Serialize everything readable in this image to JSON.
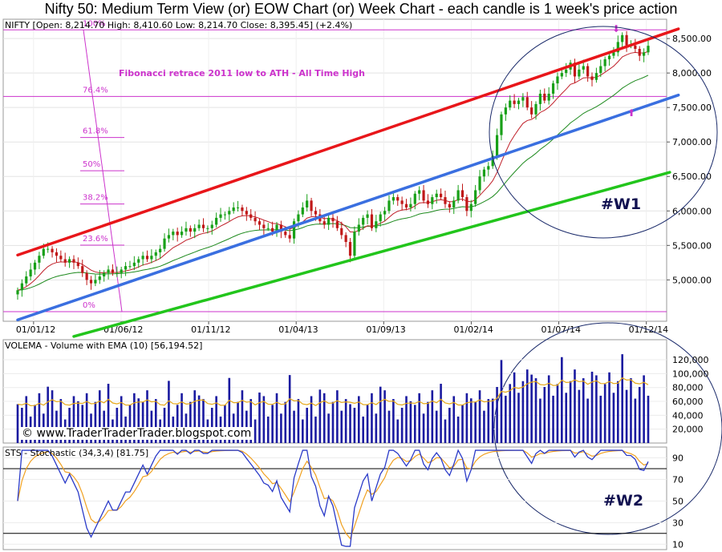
{
  "page_title": "Nifty 50: Medium Term View (or) EOW Chart (or) Week Chart - each candle is 1 week's price action",
  "watermark": "© www.TraderTraderTrader.blogspot.com",
  "colors": {
    "red_channel": "#e8161a",
    "blue_channel": "#3a6fe0",
    "green_channel": "#22c51c",
    "ema_short": "#c0202a",
    "ema_long": "#1e8a1e",
    "fib": "#cc33cc",
    "volume_bar": "#1a1aa0",
    "volume_ema": "#e6a817",
    "stoch_k": "#2a3ac8",
    "stoch_d": "#f0a020",
    "candle_up": "#18a018",
    "candle_down": "#c01818"
  },
  "chart_data": [
    {
      "type": "candlestick",
      "panel_label": "NIFTY [Open: 8,214.70  High: 8,410.60  Low: 8,214.70  Close: 8,395.45] (+2.4%)",
      "annotation_text": "Fibonacci retrace 2011 low to ATH - All Time High",
      "wave_label": "#W1",
      "ylim": [
        4400,
        8780
      ],
      "y_ticks": [
        "8,500.00",
        "8,000.00",
        "7,500.00",
        "7,000.00",
        "6,500.00",
        "6,000.00",
        "5,500.00",
        "5,000.00"
      ],
      "y_tick_values": [
        8500,
        8000,
        7500,
        7000,
        6500,
        6000,
        5500,
        5000
      ],
      "x_ticks": [
        "01/01/12",
        "01/06/12",
        "01/11/12",
        "01/04/13",
        "01/09/13",
        "01/02/14",
        "01/07/14",
        "01/12/14"
      ],
      "fib_levels": [
        {
          "label": "100%",
          "value": 8626
        },
        {
          "label": "76.4%",
          "value": 7660
        },
        {
          "label": "61.8%",
          "value": 7065
        },
        {
          "label": "50%",
          "value": 6583
        },
        {
          "label": "38.2%",
          "value": 6101
        },
        {
          "label": "23.6%",
          "value": 5504
        },
        {
          "label": "0%",
          "value": 4540
        }
      ],
      "channel_lines": [
        {
          "name": "red",
          "points": [
            [
              0,
              5360
            ],
            [
              153,
              8640
            ]
          ]
        },
        {
          "name": "blue",
          "points": [
            [
              0,
              4420
            ],
            [
              153,
              7680
            ]
          ]
        },
        {
          "name": "green",
          "points": [
            [
              13,
              4180
            ],
            [
              151,
              6560
            ]
          ]
        }
      ],
      "close": [
        4850,
        4950,
        5050,
        5150,
        5250,
        5350,
        5450,
        5450,
        5400,
        5350,
        5300,
        5250,
        5300,
        5250,
        5200,
        5100,
        5000,
        4950,
        5000,
        5050,
        5100,
        5150,
        5100,
        5100,
        5150,
        5200,
        5200,
        5250,
        5300,
        5350,
        5300,
        5350,
        5400,
        5450,
        5600,
        5650,
        5700,
        5650,
        5700,
        5750,
        5700,
        5750,
        5800,
        5750,
        5750,
        5800,
        5900,
        5950,
        5950,
        6000,
        6050,
        6050,
        6000,
        5950,
        5900,
        5850,
        5800,
        5750,
        5750,
        5700,
        5800,
        5700,
        5650,
        5600,
        5850,
        5950,
        6050,
        6150,
        6000,
        5950,
        5850,
        5800,
        5900,
        5850,
        5750,
        5650,
        5550,
        5350,
        5700,
        5800,
        5900,
        5950,
        5750,
        5850,
        5950,
        6000,
        6150,
        6200,
        6150,
        6100,
        6050,
        6100,
        6250,
        6300,
        6150,
        6100,
        6200,
        6250,
        6200,
        6100,
        6050,
        6150,
        6300,
        6200,
        6000,
        6100,
        6300,
        6500,
        6600,
        6650,
        6800,
        7100,
        7400,
        7500,
        7600,
        7550,
        7600,
        7650,
        7500,
        7400,
        7550,
        7700,
        7600,
        7700,
        7850,
        7950,
        8000,
        8050,
        8150,
        7950,
        8050,
        8100,
        7950,
        7900,
        8000,
        8100,
        8200,
        8250,
        8300,
        8450,
        8550,
        8400,
        8400,
        8350,
        8250,
        8300,
        8395
      ],
      "volume_label": "VOLEMA - Volume with EMA (10) [56,194.52]",
      "volume_ylim": [
        0,
        142000
      ],
      "volume_ticks": [
        "120,000",
        "100,000",
        "80,000",
        "60,000",
        "40,000",
        "20,000"
      ],
      "volume_tick_values": [
        120000,
        100000,
        80000,
        60000,
        40000,
        20000
      ],
      "stoch_label": "STS - Stochastic (34,3,4) [81.75]",
      "stoch_wave_label": "#W2",
      "stoch_ylim": [
        5,
        100
      ],
      "stoch_ticks": [
        "90",
        "70",
        "50",
        "30",
        "10"
      ],
      "stoch_tick_values": [
        90,
        70,
        50,
        30,
        10
      ],
      "stoch_ref_levels": [
        80,
        20
      ]
    }
  ]
}
